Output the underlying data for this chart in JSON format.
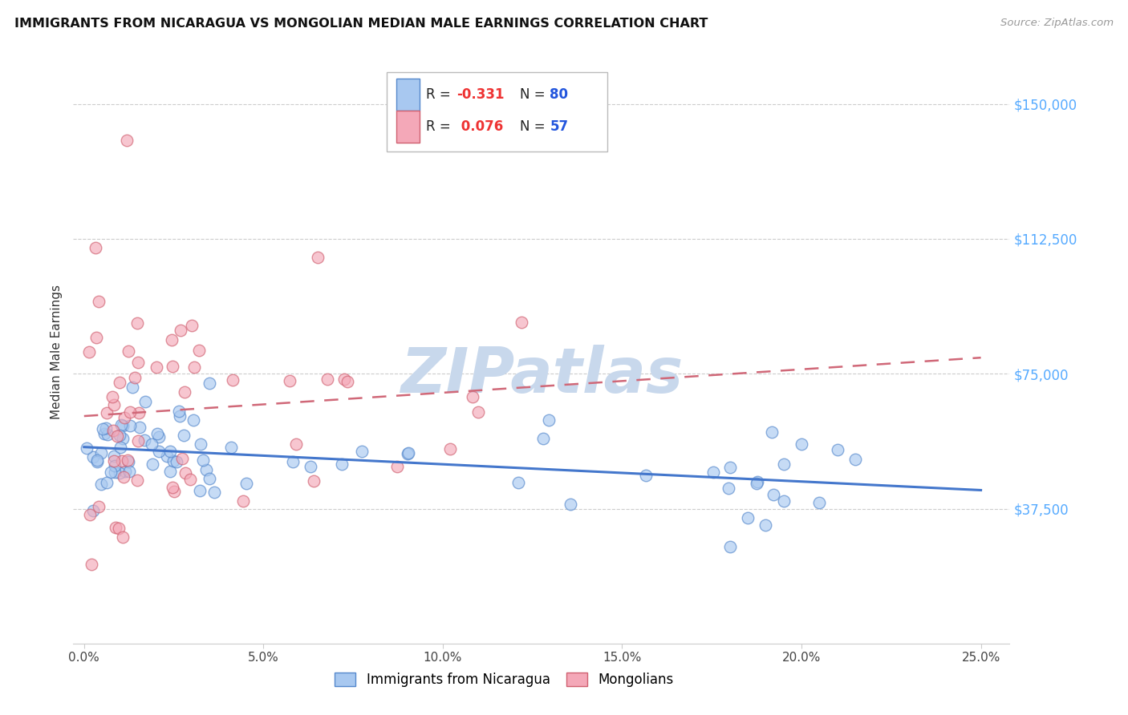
{
  "title": "IMMIGRANTS FROM NICARAGUA VS MONGOLIAN MEDIAN MALE EARNINGS CORRELATION CHART",
  "source": "Source: ZipAtlas.com",
  "ylabel": "Median Male Earnings",
  "ytick_values": [
    37500,
    75000,
    112500,
    150000
  ],
  "ytick_labels": [
    "$37,500",
    "$75,000",
    "$112,500",
    "$150,000"
  ],
  "xtick_values": [
    0.0,
    0.05,
    0.1,
    0.15,
    0.2,
    0.25
  ],
  "xtick_labels": [
    "0.0%",
    "5.0%",
    "10.0%",
    "15.0%",
    "20.0%",
    "25.0%"
  ],
  "legend_label1": "Immigrants from Nicaragua",
  "legend_label2": "Mongolians",
  "R1": -0.331,
  "N1": 80,
  "R2": 0.076,
  "N2": 57,
  "color_blue": "#A8C8F0",
  "color_pink": "#F4A8B8",
  "edge_color_blue": "#5588CC",
  "edge_color_pink": "#D06070",
  "line_color_blue": "#4477CC",
  "line_color_pink": "#D06878",
  "watermark": "ZIPatlas",
  "watermark_color": "#C8D8EC",
  "grid_color": "#CCCCCC",
  "right_axis_color": "#55AAFF",
  "xlim": [
    -0.003,
    0.258
  ],
  "ylim": [
    0,
    162000
  ]
}
